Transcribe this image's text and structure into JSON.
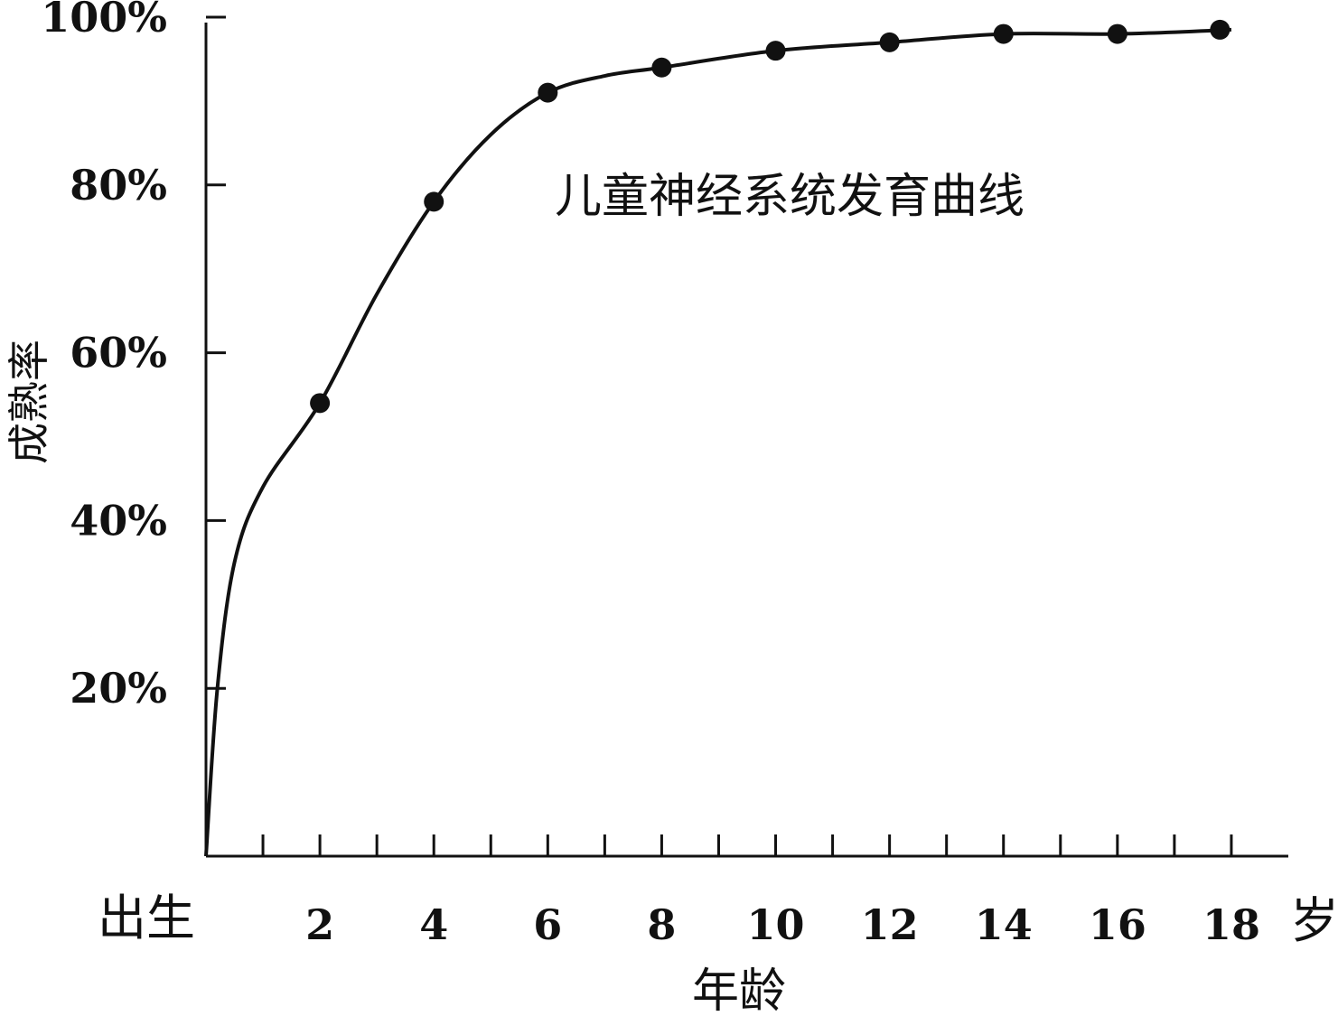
{
  "chart_data": {
    "type": "line",
    "annotation": "儿童神经系统发育曲线",
    "xlabel": "年龄",
    "ylabel": "成熟率",
    "x_origin_label": "出生",
    "x_unit_label": "岁",
    "xlim": [
      0,
      19
    ],
    "ylim": [
      0,
      100
    ],
    "yticks": [
      20,
      40,
      60,
      80,
      100
    ],
    "ytick_labels": [
      "20%",
      "40%",
      "60%",
      "80%",
      "100%"
    ],
    "xticks": [
      2,
      4,
      6,
      8,
      10,
      12,
      14,
      16,
      18
    ],
    "xtick_labels": [
      "2",
      "4",
      "6",
      "8",
      "10",
      "12",
      "14",
      "16",
      "18"
    ],
    "x_minor_ticks": [
      1,
      3,
      5,
      7,
      9,
      11,
      13,
      15,
      17
    ],
    "series": [
      {
        "x": [
          2,
          4,
          6,
          8,
          10,
          12,
          14,
          16,
          17.8
        ],
        "values": [
          54,
          78,
          91,
          94,
          96,
          97,
          98,
          98,
          98.5
        ]
      }
    ],
    "curve": {
      "x": [
        0,
        0.2,
        0.5,
        1,
        2,
        3,
        4,
        5,
        6,
        7,
        8,
        10,
        12,
        14,
        16,
        18
      ],
      "values": [
        0,
        20,
        35,
        44,
        54,
        67,
        78,
        86,
        91,
        93,
        94,
        96,
        97,
        98,
        98,
        98.5
      ]
    }
  }
}
